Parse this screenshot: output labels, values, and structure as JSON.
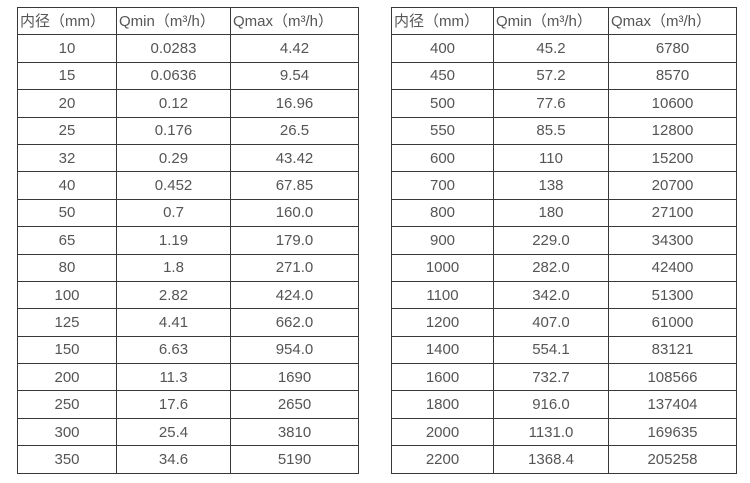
{
  "page": {
    "background_color": "#ffffff",
    "text_color": "#555555",
    "border_color": "#383838"
  },
  "tables": [
    {
      "name": "small-diameter-flow-table",
      "headers": [
        "内径（mm）",
        "Qmin（m³/h）",
        "Qmax（m³/h）"
      ],
      "rows": [
        [
          "10",
          "0.0283",
          "4.42"
        ],
        [
          "15",
          "0.0636",
          "9.54"
        ],
        [
          "20",
          "0.12",
          "16.96"
        ],
        [
          "25",
          "0.176",
          "26.5"
        ],
        [
          "32",
          "0.29",
          "43.42"
        ],
        [
          "40",
          "0.452",
          "67.85"
        ],
        [
          "50",
          "0.7",
          "160.0"
        ],
        [
          "65",
          "1.19",
          "179.0"
        ],
        [
          "80",
          "1.8",
          "271.0"
        ],
        [
          "100",
          "2.82",
          "424.0"
        ],
        [
          "125",
          "4.41",
          "662.0"
        ],
        [
          "150",
          "6.63",
          "954.0"
        ],
        [
          "200",
          "11.3",
          "1690"
        ],
        [
          "250",
          "17.6",
          "2650"
        ],
        [
          "300",
          "25.4",
          "3810"
        ],
        [
          "350",
          "34.6",
          "5190"
        ]
      ]
    },
    {
      "name": "large-diameter-flow-table",
      "headers": [
        "内径（mm）",
        "Qmin（m³/h）",
        "Qmax（m³/h）"
      ],
      "rows": [
        [
          "400",
          "45.2",
          "6780"
        ],
        [
          "450",
          "57.2",
          "8570"
        ],
        [
          "500",
          "77.6",
          "10600"
        ],
        [
          "550",
          "85.5",
          "12800"
        ],
        [
          "600",
          "110",
          "15200"
        ],
        [
          "700",
          "138",
          "20700"
        ],
        [
          "800",
          "180",
          "27100"
        ],
        [
          "900",
          "229.0",
          "34300"
        ],
        [
          "1000",
          "282.0",
          "42400"
        ],
        [
          "1100",
          "342.0",
          "51300"
        ],
        [
          "1200",
          "407.0",
          "61000"
        ],
        [
          "1400",
          "554.1",
          "83121"
        ],
        [
          "1600",
          "732.7",
          "108566"
        ],
        [
          "1800",
          "916.0",
          "137404"
        ],
        [
          "2000",
          "1131.0",
          "169635"
        ],
        [
          "2200",
          "1368.4",
          "205258"
        ]
      ]
    }
  ]
}
